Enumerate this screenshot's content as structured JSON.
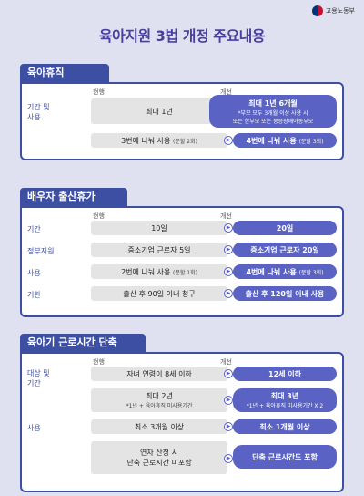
{
  "header": {
    "ministry": "고용노동부",
    "title": "육아지원 3법 개정 주요내용"
  },
  "col_current": "현행",
  "col_improved": "개선",
  "section1": {
    "title": "육아휴직",
    "row1_label": "기간 및\n사용",
    "row1_current": "최대 1년",
    "row1_new": "최대 1년 6개월",
    "row1_new_note": "*부모 모두 3개월 이상 사용 시\n또는 한부모 또는 중증장애아동부모",
    "row2_current": "3번에 나눠 사용",
    "row2_current_note": "(분할 2회)",
    "row2_new": "4번에 나눠 사용",
    "row2_new_note": "(분할 3회)"
  },
  "section2": {
    "title": "배우자 출산휴가",
    "row1_label": "기간",
    "row1_current": "10일",
    "row1_new": "20일",
    "row2_label": "정부지원",
    "row2_current": "중소기업 근로자 5일",
    "row2_new": "중소기업 근로자 20일",
    "row3_label": "사용",
    "row3_current": "2번에 나눠 사용",
    "row3_current_note": "(분할 1회)",
    "row3_new": "4번에 나눠 사용",
    "row3_new_note": "(분할 3회)",
    "row4_label": "기한",
    "row4_current": "출산 후 90일 이내 청구",
    "row4_new": "출산 후 120일 이내 사용"
  },
  "section3": {
    "title": "육아기 근로시간 단축",
    "row1_label": "대상 및\n기간",
    "row1_current": "자녀 연령이 8세 이하",
    "row1_new": "12세 이하",
    "row2_current": "최대 2년",
    "row2_current_note": "*1년 + 육아휴직 미사용기간",
    "row2_new": "최대 3년",
    "row2_new_note": "*1년 + 육아휴직 미사용기간 X 2",
    "row3_label": "사용",
    "row3_current": "최소 3개월 이상",
    "row3_new": "최소 1개월 이상",
    "row4_current": "연차 산정 시\n단축 근로시간 미포함",
    "row4_new": "단축 근로시간도 포함"
  }
}
